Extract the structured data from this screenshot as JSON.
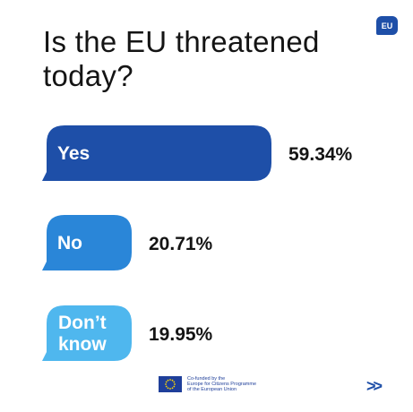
{
  "badge": "EU",
  "title": "Is the EU threatened today?",
  "chart_data": {
    "type": "bar",
    "categories": [
      "Yes",
      "No",
      "Don’t know"
    ],
    "values": [
      59.34,
      20.71,
      19.95
    ],
    "value_labels": [
      "59.34%",
      "20.71%",
      "19.95%"
    ],
    "colors": [
      "#1e4fa8",
      "#2a86d8",
      "#4fb7ee"
    ],
    "title": "Is the EU threatened today?",
    "xlabel": "",
    "ylabel": "",
    "grid": false
  },
  "footer": {
    "line1": "Co-funded by the",
    "line2": "Europe for Citizens Programme",
    "line3": "of the European Union"
  },
  "nav": {
    "next": ">>"
  }
}
